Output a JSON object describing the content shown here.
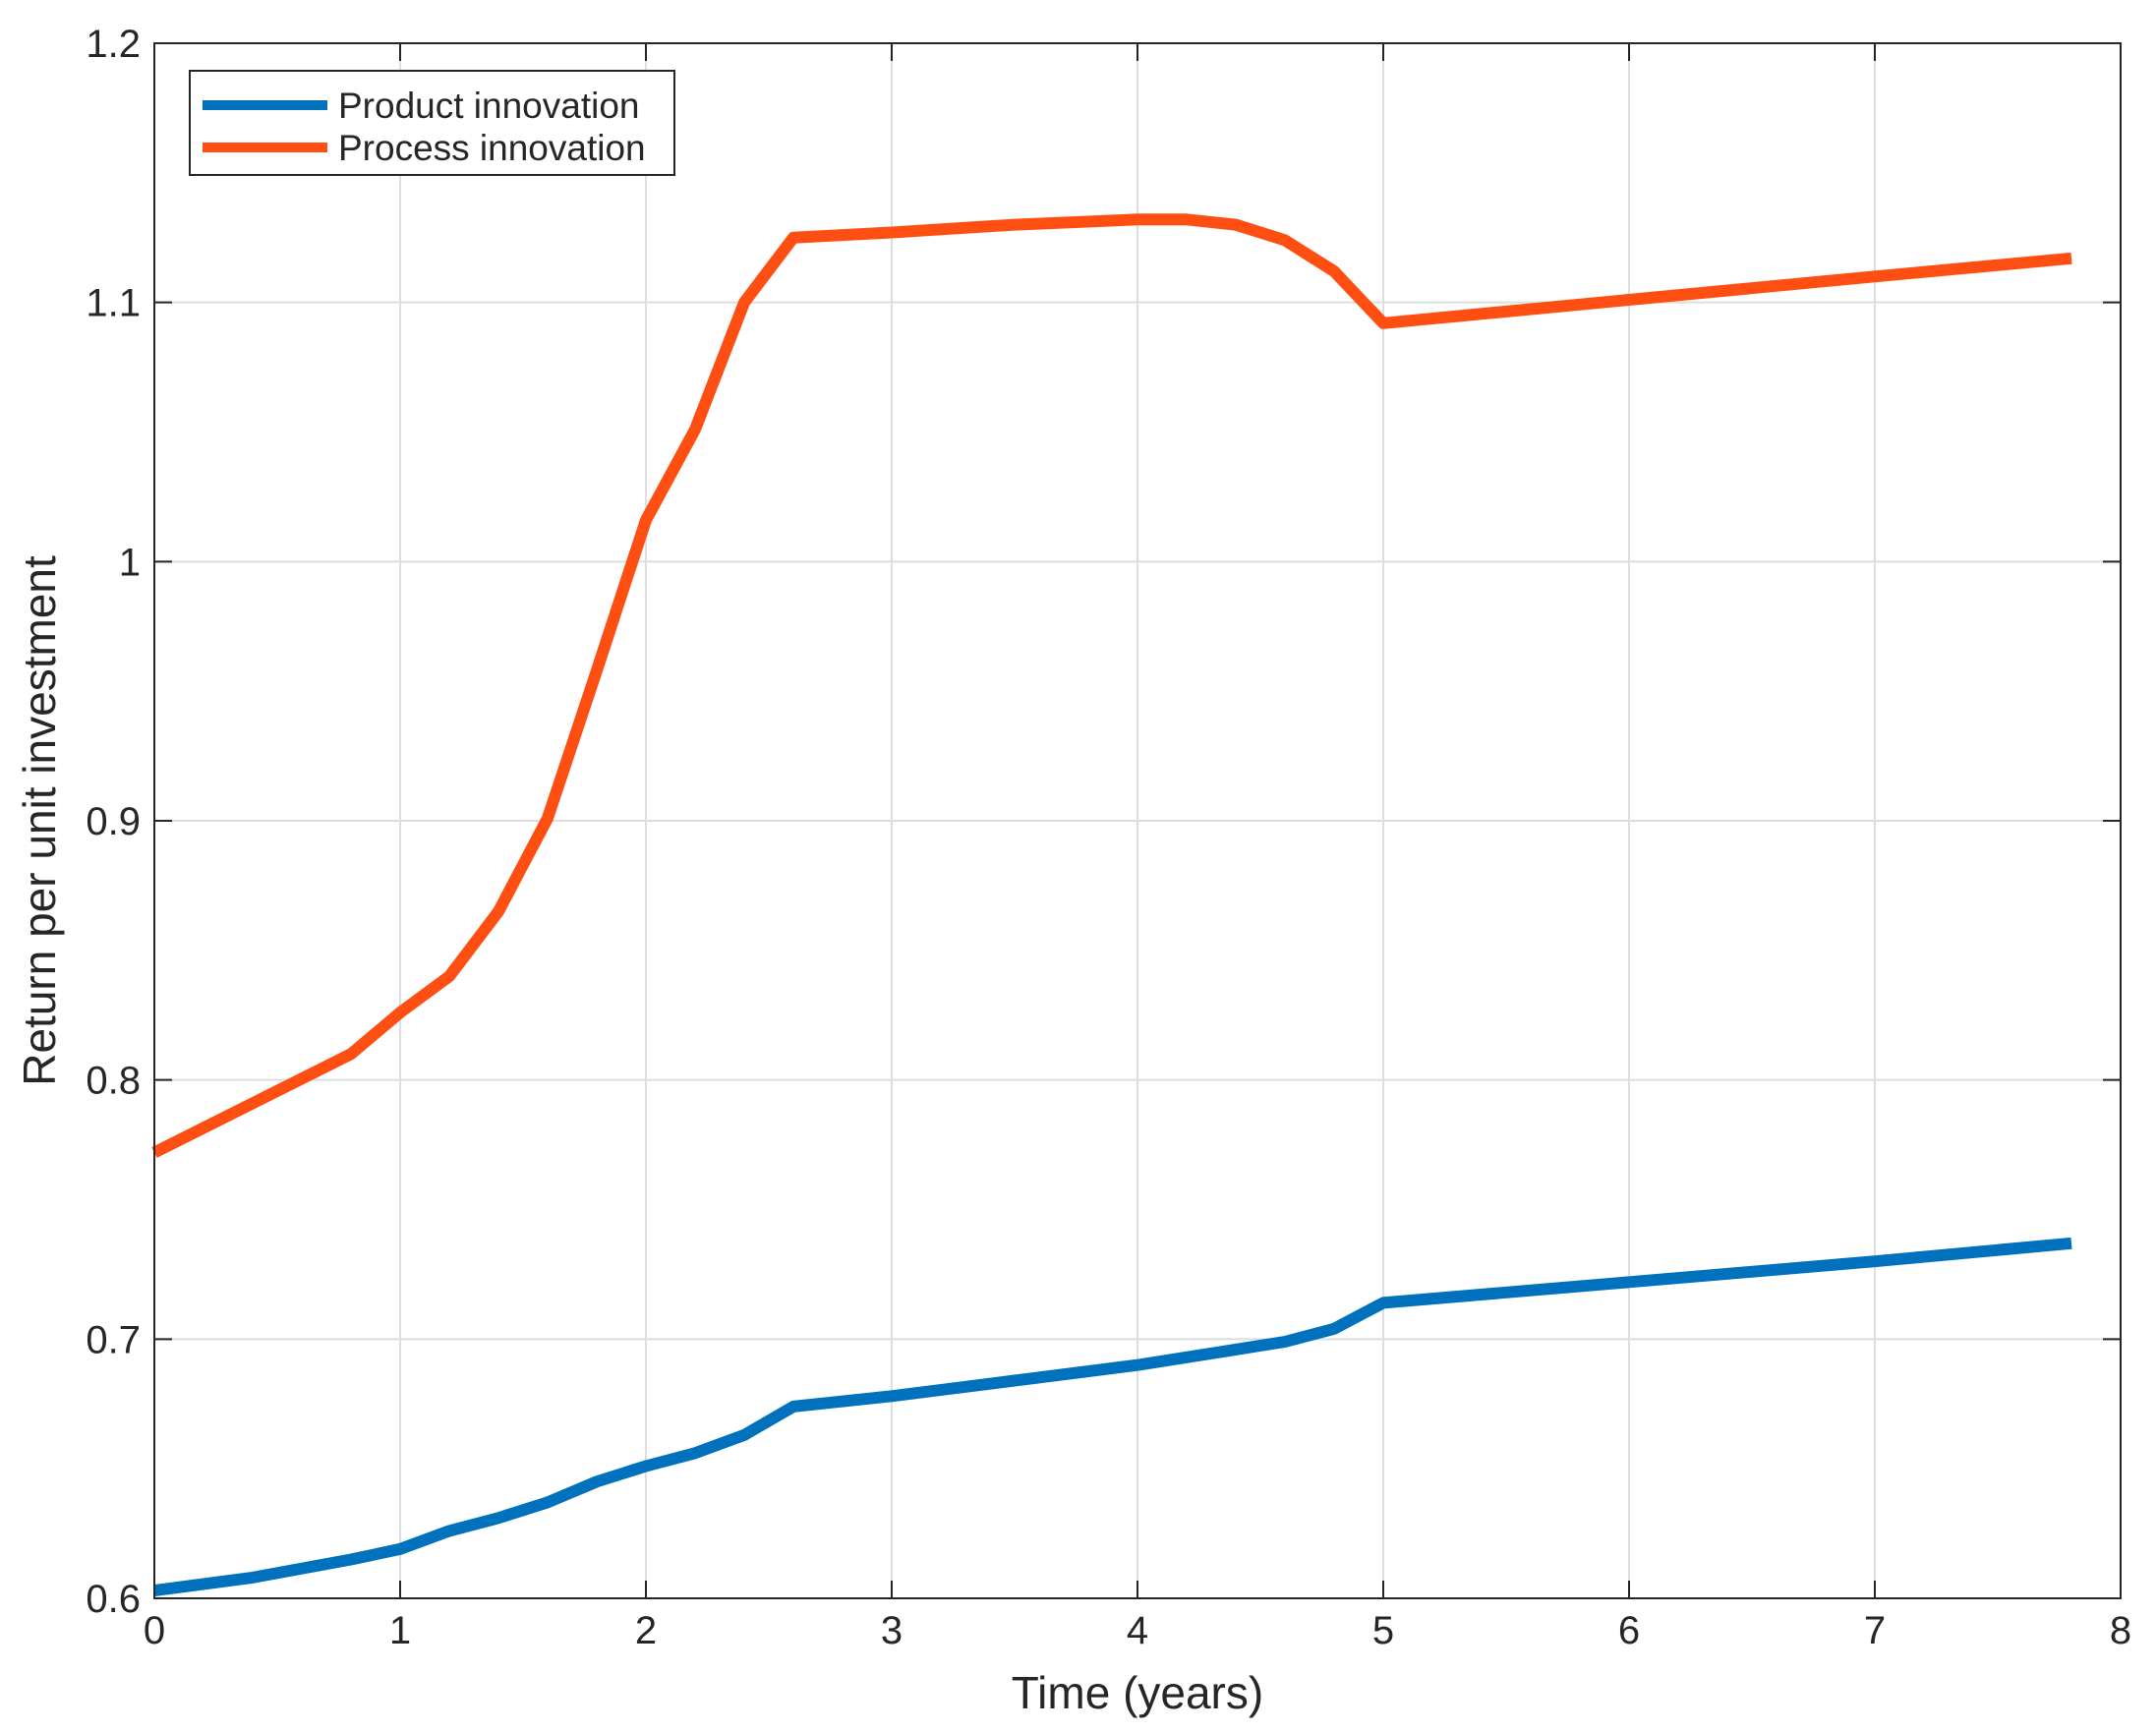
{
  "chart_data": {
    "type": "line",
    "xlabel": "Time (years)",
    "ylabel": "Return per unit investment",
    "xlim": [
      0,
      8
    ],
    "ylim": [
      0.6,
      1.2
    ],
    "xticks": [
      "0",
      "1",
      "2",
      "3",
      "4",
      "5",
      "6",
      "7",
      "8"
    ],
    "yticks": [
      "0.6",
      "0.7",
      "0.8",
      "0.9",
      "1",
      "1.1",
      "1.2"
    ],
    "grid": true,
    "legend_position": "top-left",
    "series": [
      {
        "name": "Product innovation",
        "color": "#0072BD",
        "x": [
          0,
          0.4,
          0.8,
          1.0,
          1.2,
          1.4,
          1.6,
          1.8,
          2.0,
          2.2,
          2.4,
          2.6,
          3.0,
          3.5,
          4.0,
          4.2,
          4.4,
          4.6,
          4.8,
          5.0,
          6.0,
          7.0,
          7.8
        ],
        "y": [
          0.603,
          0.608,
          0.615,
          0.619,
          0.626,
          0.631,
          0.637,
          0.645,
          0.651,
          0.656,
          0.663,
          0.674,
          0.678,
          0.684,
          0.69,
          0.693,
          0.696,
          0.699,
          0.704,
          0.714,
          0.722,
          0.73,
          0.737
        ]
      },
      {
        "name": "Process innovation",
        "color": "#FF4E12",
        "x": [
          0,
          0.4,
          0.8,
          1.0,
          1.2,
          1.4,
          1.6,
          1.8,
          2.0,
          2.2,
          2.4,
          2.6,
          3.0,
          3.5,
          4.0,
          4.2,
          4.4,
          4.6,
          4.8,
          5.0,
          6.0,
          7.0,
          7.8
        ],
        "y": [
          0.772,
          0.791,
          0.81,
          0.826,
          0.84,
          0.865,
          0.901,
          0.958,
          1.016,
          1.051,
          1.1,
          1.125,
          1.127,
          1.13,
          1.132,
          1.132,
          1.13,
          1.124,
          1.112,
          1.092,
          1.101,
          1.11,
          1.117
        ]
      }
    ]
  }
}
